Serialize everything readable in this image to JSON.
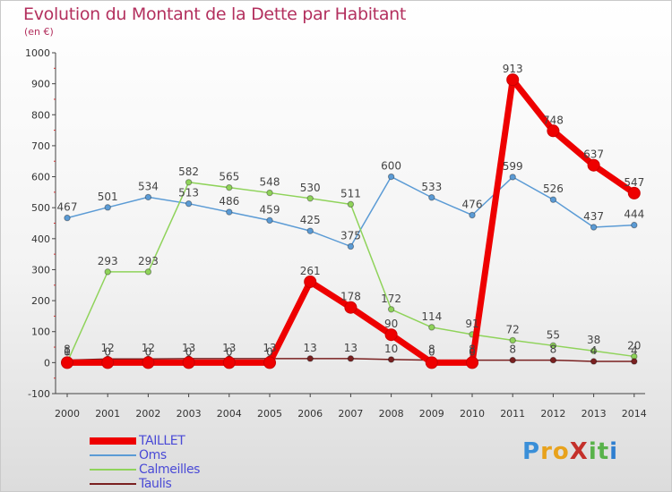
{
  "header": {
    "title": "Evolution du Montant de la Dette par Habitant",
    "subtitle": "(en €)"
  },
  "logo": {
    "text": "ProXiti"
  },
  "chart_data": {
    "type": "line",
    "title": "Evolution du Montant de la Dette par Habitant",
    "subtitle": "(en €)",
    "xlabel": "",
    "ylabel": "",
    "x": [
      2000,
      2001,
      2002,
      2003,
      2004,
      2005,
      2006,
      2007,
      2008,
      2009,
      2010,
      2011,
      2012,
      2013,
      2014
    ],
    "ylim": [
      -100,
      1000
    ],
    "yticks": [
      -100,
      0,
      100,
      200,
      300,
      400,
      500,
      600,
      700,
      800,
      900,
      1000
    ],
    "grid": false,
    "legend_position": "bottom-left",
    "series": [
      {
        "name": "TAILLET",
        "color": "#ee0000",
        "values": [
          0,
          0,
          0,
          0,
          0,
          0,
          261,
          178,
          90,
          0,
          0,
          913,
          748,
          637,
          547
        ],
        "labels": [
          "0",
          "0",
          "0",
          "0",
          "0",
          "0",
          "261",
          "178",
          "90",
          "0",
          "0",
          "913",
          "748",
          "637",
          "547"
        ]
      },
      {
        "name": "Oms",
        "color": "#5b9bd5",
        "values": [
          467,
          501,
          534,
          513,
          486,
          459,
          425,
          375,
          600,
          533,
          476,
          599,
          526,
          437,
          444
        ],
        "labels": [
          "467",
          "501",
          "534",
          "513",
          "486",
          "459",
          "425",
          "375",
          "600",
          "533",
          "476",
          "599",
          "526",
          "437",
          "444"
        ]
      },
      {
        "name": "Calmeilles",
        "color": "#8fd35a",
        "values": [
          1,
          293,
          293,
          582,
          565,
          548,
          530,
          511,
          172,
          114,
          91,
          72,
          55,
          38,
          20
        ],
        "labels": [
          "1",
          "293",
          "293",
          "582",
          "565",
          "548",
          "530",
          "511",
          "172",
          "114",
          "91",
          "72",
          "55",
          "38",
          "20"
        ]
      },
      {
        "name": "Taulis",
        "color": "#7a2020",
        "values": [
          8,
          12,
          12,
          13,
          13,
          13,
          13,
          13,
          10,
          8,
          8,
          8,
          8,
          4,
          4
        ],
        "labels": [
          "8",
          "12",
          "12",
          "13",
          "13",
          "13",
          "13",
          "13",
          "10",
          "8",
          "8",
          "8",
          "8",
          "4",
          "4"
        ]
      }
    ]
  }
}
